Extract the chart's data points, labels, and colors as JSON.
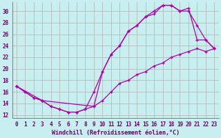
{
  "xlabel": "Windchill (Refroidissement éolien,°C)",
  "background_color": "#c8eef0",
  "grid_color": "#b0b0b0",
  "line_color": "#aa00aa",
  "xlim": [
    -0.5,
    23.5
  ],
  "ylim": [
    11.5,
    31.5
  ],
  "xticks": [
    0,
    1,
    2,
    3,
    4,
    5,
    6,
    7,
    8,
    9,
    10,
    11,
    12,
    13,
    14,
    15,
    16,
    17,
    18,
    19,
    20,
    21,
    22,
    23
  ],
  "yticks": [
    12,
    14,
    16,
    18,
    20,
    22,
    24,
    26,
    28,
    30
  ],
  "curve1_x": [
    0,
    1,
    2,
    3,
    4,
    5,
    6,
    7,
    8,
    9,
    10,
    11,
    12,
    13,
    14,
    15,
    16,
    17,
    18,
    19,
    20,
    21,
    22,
    23
  ],
  "curve1_y": [
    17,
    16,
    15,
    14.5,
    13.5,
    13,
    12.5,
    12.5,
    13,
    13.5,
    19.5,
    22.5,
    24.0,
    26.5,
    27.5,
    29.0,
    29.5,
    31.0,
    31.0,
    30.0,
    30.0,
    27.5,
    25.0,
    23.5
  ],
  "curve2_x": [
    0,
    1,
    2,
    3,
    4,
    5,
    6,
    7,
    8,
    9,
    10,
    11,
    12,
    13,
    14,
    15,
    16,
    17,
    18,
    19,
    20,
    21,
    22,
    23
  ],
  "curve2_y": [
    17,
    16,
    15,
    14.5,
    13.5,
    13,
    12.5,
    12.5,
    13,
    16.0,
    19.5,
    22.5,
    24.0,
    26.5,
    27.5,
    29.0,
    30.0,
    31.0,
    31.0,
    30.0,
    30.5,
    25.0,
    25.0,
    23.5
  ],
  "curve3_x": [
    0,
    3,
    9,
    10,
    11,
    12,
    13,
    14,
    15,
    16,
    17,
    18,
    19,
    20,
    21,
    22,
    23
  ],
  "curve3_y": [
    17,
    14.5,
    13.5,
    14.5,
    16.0,
    17.5,
    18.0,
    19.0,
    19.5,
    20.5,
    21.0,
    22.0,
    22.5,
    23.0,
    23.5,
    23.0,
    23.5
  ],
  "xlabel_fontsize": 6,
  "tick_fontsize": 5.5
}
